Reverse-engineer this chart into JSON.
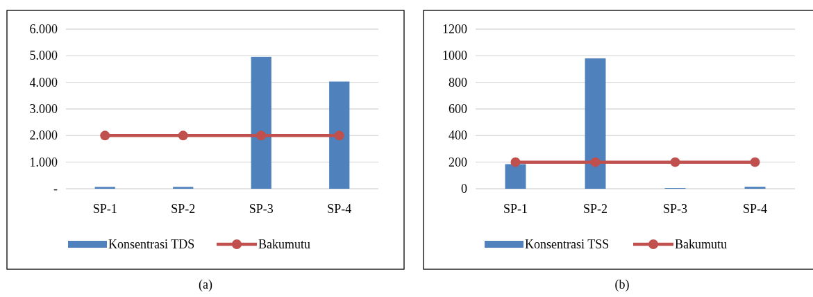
{
  "chart_data": [
    {
      "type": "bar",
      "categories": [
        "SP-1",
        "SP-2",
        "SP-3",
        "SP-4"
      ],
      "series": [
        {
          "name": "Konsentrasi TDS",
          "color": "#4f81bd",
          "values": [
            70,
            70,
            4960,
            4030
          ]
        },
        {
          "name": "Bakumutu",
          "type": "line",
          "color": "#c0504d",
          "values": [
            2000,
            2000,
            2000,
            2000
          ]
        }
      ],
      "ylim": [
        0,
        6000
      ],
      "yticks": [
        {
          "value": 0,
          "label": "-"
        },
        {
          "value": 1000,
          "label": "1.000"
        },
        {
          "value": 2000,
          "label": "2.000"
        },
        {
          "value": 3000,
          "label": "3.000"
        },
        {
          "value": 4000,
          "label": "4.000"
        },
        {
          "value": 5000,
          "label": "5.000"
        },
        {
          "value": 6000,
          "label": "6.000"
        }
      ],
      "grid": "y",
      "legend": "bottom",
      "marker": "circle",
      "annotations": [
        "(a)"
      ]
    },
    {
      "type": "bar",
      "categories": [
        "SP-1",
        "SP-2",
        "SP-3",
        "SP-4"
      ],
      "series": [
        {
          "name": "Konsentrasi TSS",
          "color": "#4f81bd",
          "values": [
            185,
            980,
            5,
            15
          ]
        },
        {
          "name": "Bakumutu",
          "type": "line",
          "color": "#c0504d",
          "values": [
            200,
            200,
            200,
            200
          ]
        }
      ],
      "ylim": [
        0,
        1200
      ],
      "yticks": [
        0,
        200,
        400,
        600,
        800,
        1000,
        1200
      ],
      "grid": "y",
      "legend": "bottom",
      "marker": "circle",
      "annotations": [
        "(b)"
      ]
    }
  ]
}
